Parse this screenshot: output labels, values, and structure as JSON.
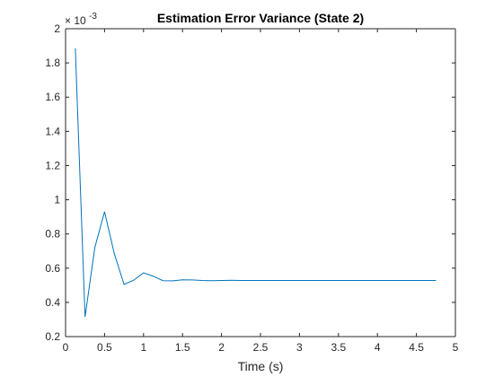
{
  "chart_data": {
    "type": "line",
    "title": "Estimation Error Variance (State 2)",
    "xlabel": "Time (s)",
    "ylabel": "",
    "y_exponent_label": "× 10",
    "y_exponent_power": "-3",
    "xlim": [
      0,
      5
    ],
    "ylim": [
      0.2,
      2
    ],
    "y_scale_factor": 0.001,
    "xticks": [
      0,
      0.5,
      1,
      1.5,
      2,
      2.5,
      3,
      3.5,
      4,
      4.5,
      5
    ],
    "xtick_labels": [
      "0",
      "0.5",
      "1",
      "1.5",
      "2",
      "2.5",
      "3",
      "3.5",
      "4",
      "4.5",
      "5"
    ],
    "yticks": [
      0.2,
      0.4,
      0.6,
      0.8,
      1,
      1.2,
      1.4,
      1.6,
      1.8,
      2
    ],
    "ytick_labels": [
      "0.2",
      "0.4",
      "0.6",
      "0.8",
      "1",
      "1.2",
      "1.4",
      "1.6",
      "1.8",
      "2"
    ],
    "grid": false,
    "color": "#0072BD",
    "series": [
      {
        "x": [
          0.125,
          0.25,
          0.375,
          0.5,
          0.625,
          0.75,
          0.875,
          1.0,
          1.125,
          1.25,
          1.375,
          1.5,
          1.625,
          1.75,
          1.875,
          2.0,
          2.125,
          2.25,
          2.375,
          2.5,
          2.625,
          2.75,
          2.875,
          3.0,
          3.125,
          3.25,
          3.375,
          3.5,
          3.625,
          3.75,
          3.875,
          4.0,
          4.125,
          4.25,
          4.375,
          4.5,
          4.625,
          4.75
        ],
        "values": [
          1.885,
          0.315,
          0.72,
          0.93,
          0.685,
          0.505,
          0.53,
          0.573,
          0.553,
          0.527,
          0.526,
          0.532,
          0.531,
          0.528,
          0.527,
          0.528,
          0.529,
          0.528,
          0.528,
          0.528,
          0.528,
          0.528,
          0.528,
          0.528,
          0.528,
          0.528,
          0.528,
          0.528,
          0.528,
          0.528,
          0.528,
          0.528,
          0.528,
          0.528,
          0.528,
          0.528,
          0.528,
          0.528
        ]
      }
    ]
  }
}
